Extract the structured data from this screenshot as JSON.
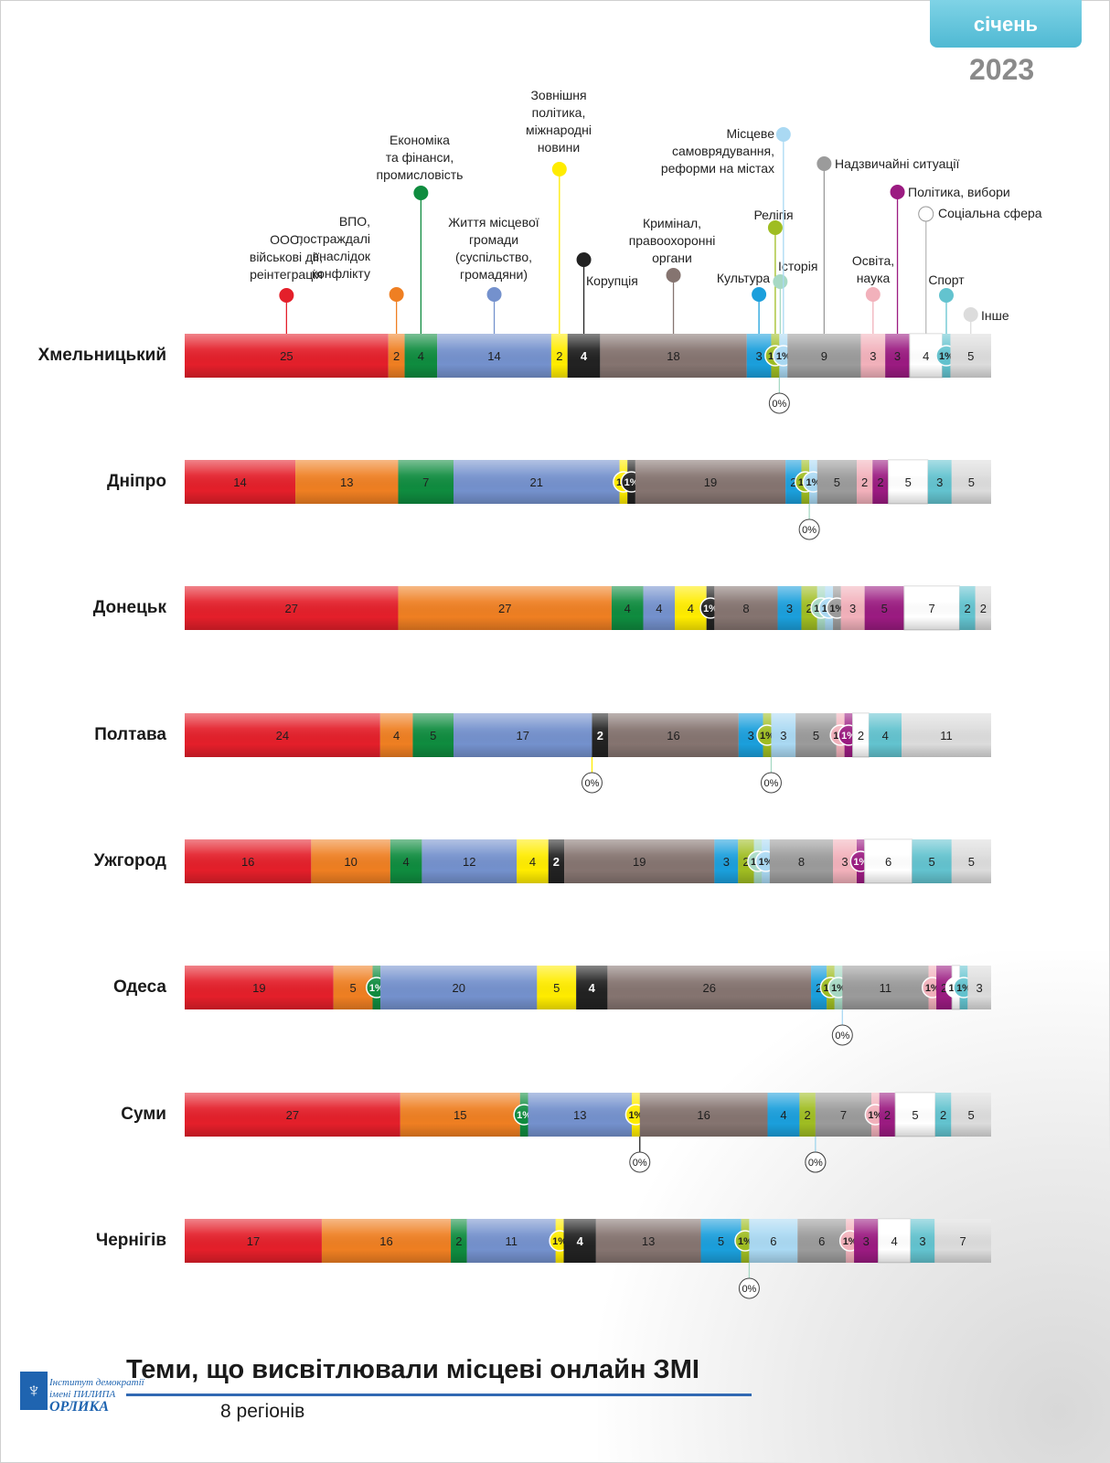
{
  "header": {
    "month": "січень",
    "year": "2023"
  },
  "footer": {
    "title": "Теми, що висвітлювали місцеві онлайн ЗМІ",
    "subtitle": "8 регіонів"
  },
  "logo": {
    "line1": "Інститут демократії",
    "line2": "імені ПИЛИПА",
    "line3": "ОРЛИКА"
  },
  "colors": {
    "oos": "#e41f2a",
    "vpo": "#ef7f22",
    "econ": "#0f8c3f",
    "life": "#7491cd",
    "foreign": "#ffec00",
    "corruption": "#222222",
    "crime": "#857470",
    "culture": "#1b9fdc",
    "religion": "#9fbd22",
    "history": "#a7d9c4",
    "selfgov": "#aad9f3",
    "emergency": "#9b9b9b",
    "education": "#f2b1bb",
    "politics": "#9b1b81",
    "social": "#ffffff",
    "sport": "#63c3cf",
    "other": "#dcdcdc"
  },
  "chart_data": {
    "type": "bar",
    "orientation": "horizontal",
    "stacked": "100%",
    "categories": [
      "Хмельницький",
      "Дніпро",
      "Донецьк",
      "Полтава",
      "Ужгород",
      "Одеса",
      "Суми",
      "Чернігів"
    ],
    "legend": [
      {
        "key": "oos",
        "label": "ООС, військові дії, реінтеграція"
      },
      {
        "key": "vpo",
        "label": "ВПО, постраждалі внаслідок конфлікту"
      },
      {
        "key": "econ",
        "label": "Економіка та фінанси, промисловість"
      },
      {
        "key": "life",
        "label": "Життя місцевої громади (суспільство, громадяни)"
      },
      {
        "key": "foreign",
        "label": "Зовнішня політика, міжнародні новини"
      },
      {
        "key": "corruption",
        "label": "Корупція"
      },
      {
        "key": "crime",
        "label": "Кримінал, правоохоронні органи"
      },
      {
        "key": "culture",
        "label": "Культура"
      },
      {
        "key": "religion",
        "label": "Релігія"
      },
      {
        "key": "history",
        "label": "Історія"
      },
      {
        "key": "selfgov",
        "label": "Місцеве самоврядування, реформи на містах"
      },
      {
        "key": "emergency",
        "label": "Надзвичайні ситуації"
      },
      {
        "key": "education",
        "label": "Освіта, наука"
      },
      {
        "key": "politics",
        "label": "Політика, вибори"
      },
      {
        "key": "social",
        "label": "Соціальна сфера"
      },
      {
        "key": "sport",
        "label": "Спорт"
      },
      {
        "key": "other",
        "label": "Інше"
      }
    ],
    "series_order": [
      "oos",
      "vpo",
      "econ",
      "life",
      "foreign",
      "corruption",
      "crime",
      "culture",
      "religion",
      "history",
      "selfgov",
      "emergency",
      "education",
      "politics",
      "social",
      "sport",
      "other"
    ],
    "rows": [
      {
        "region": "Хмельницький",
        "values": [
          25,
          2,
          4,
          14,
          2,
          4,
          18,
          3,
          1,
          0,
          1,
          9,
          3,
          3,
          4,
          1,
          5
        ]
      },
      {
        "region": "Дніпро",
        "values": [
          14,
          13,
          7,
          21,
          1,
          1,
          19,
          2,
          1,
          0,
          1,
          5,
          2,
          2,
          5,
          3,
          5
        ]
      },
      {
        "region": "Донецьк",
        "values": [
          27,
          27,
          4,
          4,
          4,
          1,
          8,
          3,
          2,
          1,
          1,
          1,
          3,
          5,
          7,
          2,
          2
        ]
      },
      {
        "region": "Полтава",
        "values": [
          24,
          4,
          5,
          17,
          0,
          2,
          16,
          3,
          1,
          0,
          3,
          5,
          1,
          1,
          2,
          4,
          11
        ]
      },
      {
        "region": "Ужгород",
        "values": [
          16,
          10,
          4,
          12,
          4,
          2,
          19,
          3,
          2,
          1,
          1,
          8,
          3,
          1,
          6,
          5,
          5
        ]
      },
      {
        "region": "Одеса",
        "values": [
          19,
          5,
          1,
          20,
          5,
          4,
          26,
          2,
          1,
          1,
          0,
          11,
          1,
          2,
          1,
          1,
          3
        ]
      },
      {
        "region": "Суми",
        "values": [
          27,
          15,
          1,
          13,
          1,
          0,
          16,
          4,
          2,
          0,
          0,
          7,
          1,
          2,
          5,
          2,
          5
        ]
      },
      {
        "region": "Чернігів",
        "values": [
          17,
          16,
          2,
          11,
          1,
          4,
          13,
          5,
          1,
          0,
          6,
          6,
          1,
          3,
          4,
          3,
          7
        ]
      }
    ],
    "label_suffix_small": "%",
    "grid": false
  }
}
